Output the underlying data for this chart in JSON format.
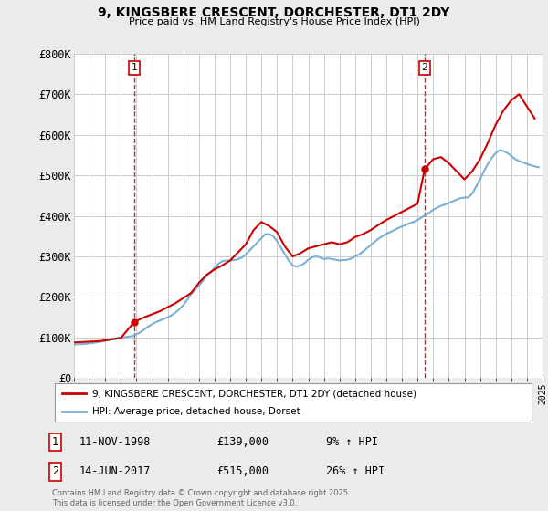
{
  "title": "9, KINGSBERE CRESCENT, DORCHESTER, DT1 2DY",
  "subtitle": "Price paid vs. HM Land Registry's House Price Index (HPI)",
  "xlim": [
    1995,
    2025
  ],
  "ylim": [
    0,
    800000
  ],
  "yticks": [
    0,
    100000,
    200000,
    300000,
    400000,
    500000,
    600000,
    700000,
    800000
  ],
  "ytick_labels": [
    "£0",
    "£100K",
    "£200K",
    "£300K",
    "£400K",
    "£500K",
    "£600K",
    "£700K",
    "£800K"
  ],
  "property_color": "#cc0000",
  "hpi_color": "#7ab0d4",
  "vline_color": "#cc0000",
  "marker1_year": 1998.87,
  "marker1_price": 139000,
  "marker2_year": 2017.45,
  "marker2_price": 515000,
  "legend_property": "9, KINGSBERE CRESCENT, DORCHESTER, DT1 2DY (detached house)",
  "legend_hpi": "HPI: Average price, detached house, Dorset",
  "footer": "Contains HM Land Registry data © Crown copyright and database right 2025.\nThis data is licensed under the Open Government Licence v3.0.",
  "background_color": "#ebebeb",
  "plot_bg_color": "#ffffff",
  "hpi_years": [
    1995.0,
    1995.25,
    1995.5,
    1995.75,
    1996.0,
    1996.25,
    1996.5,
    1996.75,
    1997.0,
    1997.25,
    1997.5,
    1997.75,
    1998.0,
    1998.25,
    1998.5,
    1998.75,
    1999.0,
    1999.25,
    1999.5,
    1999.75,
    2000.0,
    2000.25,
    2000.5,
    2000.75,
    2001.0,
    2001.25,
    2001.5,
    2001.75,
    2002.0,
    2002.25,
    2002.5,
    2002.75,
    2003.0,
    2003.25,
    2003.5,
    2003.75,
    2004.0,
    2004.25,
    2004.5,
    2004.75,
    2005.0,
    2005.25,
    2005.5,
    2005.75,
    2006.0,
    2006.25,
    2006.5,
    2006.75,
    2007.0,
    2007.25,
    2007.5,
    2007.75,
    2008.0,
    2008.25,
    2008.5,
    2008.75,
    2009.0,
    2009.25,
    2009.5,
    2009.75,
    2010.0,
    2010.25,
    2010.5,
    2010.75,
    2011.0,
    2011.25,
    2011.5,
    2011.75,
    2012.0,
    2012.25,
    2012.5,
    2012.75,
    2013.0,
    2013.25,
    2013.5,
    2013.75,
    2014.0,
    2014.25,
    2014.5,
    2014.75,
    2015.0,
    2015.25,
    2015.5,
    2015.75,
    2016.0,
    2016.25,
    2016.5,
    2016.75,
    2017.0,
    2017.25,
    2017.5,
    2017.75,
    2018.0,
    2018.25,
    2018.5,
    2018.75,
    2019.0,
    2019.25,
    2019.5,
    2019.75,
    2020.0,
    2020.25,
    2020.5,
    2020.75,
    2021.0,
    2021.25,
    2021.5,
    2021.75,
    2022.0,
    2022.25,
    2022.5,
    2022.75,
    2023.0,
    2023.25,
    2023.5,
    2023.75,
    2024.0,
    2024.25,
    2024.5,
    2024.75
  ],
  "hpi_values": [
    83000,
    83500,
    84000,
    84500,
    86000,
    87000,
    88500,
    90000,
    92000,
    95000,
    97000,
    99000,
    100000,
    101000,
    102500,
    103500,
    108000,
    113000,
    120000,
    127000,
    133000,
    138000,
    142000,
    146000,
    150000,
    155000,
    162000,
    170000,
    180000,
    193000,
    207000,
    218000,
    228000,
    240000,
    252000,
    261000,
    272000,
    282000,
    288000,
    290000,
    290000,
    291000,
    293000,
    297000,
    305000,
    315000,
    325000,
    335000,
    345000,
    355000,
    355000,
    350000,
    338000,
    322000,
    305000,
    290000,
    278000,
    275000,
    278000,
    283000,
    292000,
    298000,
    300000,
    298000,
    294000,
    295000,
    294000,
    292000,
    290000,
    291000,
    292000,
    295000,
    300000,
    305000,
    312000,
    320000,
    328000,
    336000,
    344000,
    350000,
    356000,
    360000,
    365000,
    370000,
    374000,
    378000,
    382000,
    385000,
    390000,
    396000,
    402000,
    408000,
    415000,
    420000,
    425000,
    428000,
    432000,
    436000,
    440000,
    444000,
    445000,
    446000,
    455000,
    472000,
    490000,
    510000,
    528000,
    543000,
    555000,
    562000,
    560000,
    555000,
    548000,
    540000,
    535000,
    532000,
    528000,
    525000,
    522000,
    520000
  ],
  "prop_years": [
    1995.0,
    1995.5,
    1996.0,
    1996.5,
    1997.0,
    1997.5,
    1998.0,
    1998.87,
    1999.5,
    2000.5,
    2001.5,
    2002.5,
    2003.0,
    2003.5,
    2004.0,
    2004.5,
    2005.0,
    2005.5,
    2006.0,
    2006.5,
    2007.0,
    2007.5,
    2008.0,
    2008.5,
    2009.0,
    2009.5,
    2010.0,
    2010.5,
    2011.0,
    2011.5,
    2012.0,
    2012.5,
    2013.0,
    2013.5,
    2014.0,
    2014.5,
    2015.0,
    2015.5,
    2016.0,
    2016.5,
    2017.0,
    2017.45,
    2018.0,
    2018.5,
    2019.0,
    2019.5,
    2020.0,
    2020.5,
    2021.0,
    2021.5,
    2022.0,
    2022.5,
    2023.0,
    2023.5,
    2024.0,
    2024.5
  ],
  "prop_values": [
    88000,
    89000,
    90000,
    91000,
    93000,
    96000,
    99000,
    139000,
    150000,
    165000,
    185000,
    210000,
    235000,
    255000,
    268000,
    278000,
    290000,
    310000,
    330000,
    365000,
    385000,
    375000,
    360000,
    325000,
    300000,
    308000,
    320000,
    325000,
    330000,
    335000,
    330000,
    335000,
    348000,
    355000,
    365000,
    378000,
    390000,
    400000,
    410000,
    420000,
    430000,
    515000,
    540000,
    545000,
    530000,
    510000,
    490000,
    510000,
    540000,
    580000,
    625000,
    660000,
    685000,
    700000,
    670000,
    640000
  ]
}
